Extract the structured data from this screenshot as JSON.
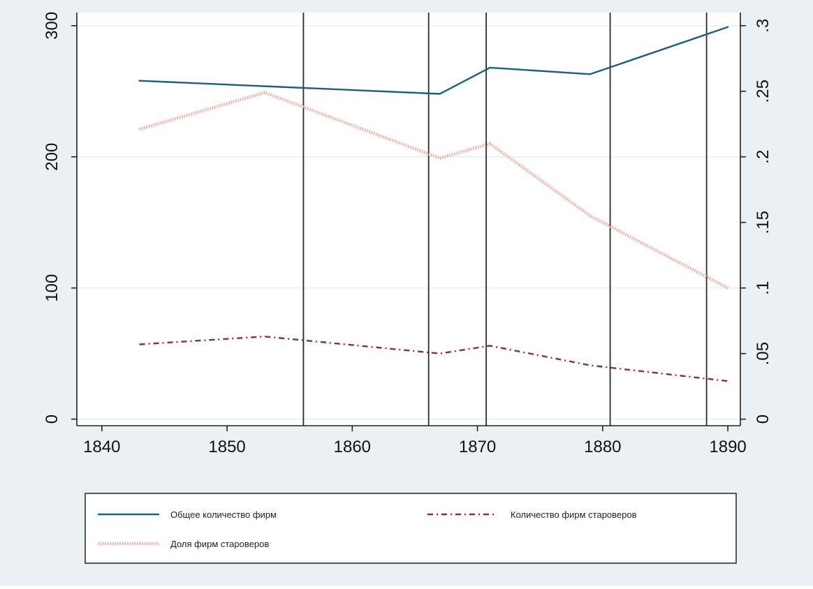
{
  "chart_data": {
    "type": "line",
    "x_ticks": [
      1840,
      1850,
      1860,
      1870,
      1880,
      1890
    ],
    "xlim": [
      1838,
      1891
    ],
    "ylim_left": [
      -5,
      310
    ],
    "yticks_left": [
      0,
      100,
      200,
      300
    ],
    "ylim_right": [
      -0.005,
      0.31
    ],
    "yticks_right": [
      0,
      0.05,
      0.1,
      0.15,
      0.2,
      0.25,
      0.3
    ],
    "yticks_right_labels": [
      "0",
      ".05",
      ".1",
      ".15",
      ".2",
      ".25",
      ".3"
    ],
    "vertical_lines": [
      1856.1,
      1866.1,
      1870.7,
      1880.6,
      1888.3
    ],
    "grid": true,
    "legend_position": "bottom",
    "series": [
      {
        "name": "Общее количество фирм",
        "axis": "left",
        "color": "#1f5f7a",
        "style": "solid",
        "points": [
          [
            1843,
            258
          ],
          [
            1867,
            248
          ],
          [
            1871,
            268
          ],
          [
            1879,
            263
          ],
          [
            1890,
            299
          ]
        ]
      },
      {
        "name": "Количество фирм староверов",
        "axis": "left",
        "color": "#8a2e3c",
        "style": "dashdot",
        "points": [
          [
            1843,
            57
          ],
          [
            1853,
            63
          ],
          [
            1867,
            50
          ],
          [
            1871,
            56
          ],
          [
            1879,
            41
          ],
          [
            1890,
            29
          ]
        ]
      },
      {
        "name": "Доля фирм староверов",
        "axis": "right",
        "color": "#f0a596",
        "style": "dotted",
        "points": [
          [
            1843,
            0.221
          ],
          [
            1853,
            0.249
          ],
          [
            1867,
            0.199
          ],
          [
            1871,
            0.21
          ],
          [
            1879,
            0.155
          ],
          [
            1890,
            0.1
          ]
        ]
      }
    ],
    "legend": {
      "entries": [
        {
          "series": 0,
          "label": "Общее количество фирм"
        },
        {
          "series": 1,
          "label": "Количество фирм староверов"
        },
        {
          "series": 2,
          "label": "Доля фирм староверов"
        }
      ]
    }
  }
}
